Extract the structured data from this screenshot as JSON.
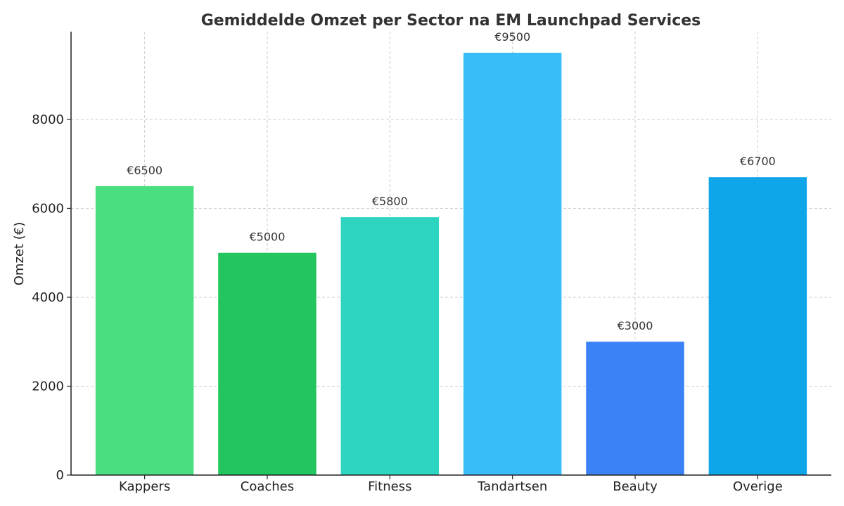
{
  "chart_data": {
    "type": "bar",
    "title": "Gemiddelde Omzet per Sector na EM Launchpad Services",
    "xlabel": "",
    "ylabel": "Omzet (€)",
    "categories": [
      "Kappers",
      "Coaches",
      "Fitness",
      "Tandartsen",
      "Beauty",
      "Overige"
    ],
    "values": [
      6500,
      5000,
      5800,
      9500,
      3000,
      6700
    ],
    "value_labels": [
      "€6500",
      "€5000",
      "€5800",
      "€9500",
      "€3000",
      "€6700"
    ],
    "colors": [
      "#4ade80",
      "#22c55e",
      "#2dd4bf",
      "#38bdf8",
      "#3b82f6",
      "#0ea5e9"
    ],
    "ylim": [
      0,
      9975
    ],
    "yticks": [
      0,
      2000,
      4000,
      6000,
      8000
    ],
    "grid": true,
    "legend": "none"
  }
}
